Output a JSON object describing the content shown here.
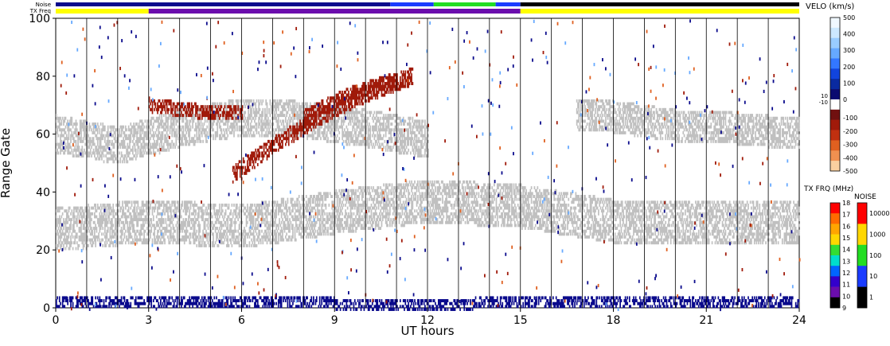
{
  "chart_data": {
    "type": "heatmap",
    "title": "",
    "xlabel": "UT hours",
    "ylabel": "Range Gate",
    "xlim": [
      0,
      24
    ],
    "ylim": [
      0,
      100
    ],
    "x_ticks": [
      "0",
      "3",
      "6",
      "9",
      "12",
      "15",
      "18",
      "21",
      "24"
    ],
    "y_ticks": [
      "0",
      "20",
      "40",
      "60",
      "80",
      "100"
    ],
    "grid_x_hourly": true,
    "status_bars": {
      "noise_label": "Noise",
      "txfreq_label": "TX Freq",
      "txfreq_segments": [
        {
          "start": 0,
          "end": 3,
          "color": "#ffff00"
        },
        {
          "start": 3,
          "end": 15,
          "color": "#6a0dad"
        },
        {
          "start": 15,
          "end": 24,
          "color": "#ffff00"
        }
      ],
      "noise_segments": [
        {
          "start": 0,
          "end": 10.8,
          "color": "#0a0a8c"
        },
        {
          "start": 10.8,
          "end": 12.2,
          "color": "#1a3cff"
        },
        {
          "start": 12.2,
          "end": 14.2,
          "color": "#22dd22"
        },
        {
          "start": 14.2,
          "end": 15.0,
          "color": "#1a3cff"
        },
        {
          "start": 15.0,
          "end": 24,
          "color": "#000000"
        }
      ]
    },
    "series": [
      {
        "name": "",
        "color": "#c0c0c0",
        "type": "ground-scatter",
        "bands": [
          {
            "x": [
              0,
              3,
              6,
              9,
              12,
              15,
              18,
              21,
              24
            ],
            "y_center": [
              27,
              30,
              28,
              33,
              37,
              35,
              30,
              29,
              30
            ],
            "width": 14
          },
          {
            "x": [
              0,
              2,
              4,
              6,
              8,
              10,
              12
            ],
            "y_center": [
              60,
              56,
              62,
              66,
              65,
              62,
              58
            ],
            "width": 12
          },
          {
            "x": [
              16.8,
              18,
              20,
              22,
              24
            ],
            "y_center": [
              67,
              66,
              63,
              62,
              60
            ],
            "width": 10
          }
        ]
      },
      {
        "name": "",
        "color": "#a01a0a",
        "type": "negative-velocity",
        "bands": [
          {
            "x": [
              5.7,
              7,
              8.5,
              10,
              11.5
            ],
            "y_center": [
              46,
              56,
              66,
              74,
              80
            ],
            "width": 5
          },
          {
            "x": [
              8,
              9.5,
              11
            ],
            "y_center": [
              66,
              74,
              79
            ],
            "width": 4
          },
          {
            "x": [
              3,
              4.5,
              6
            ],
            "y_center": [
              70,
              68,
              67
            ],
            "width": 4
          }
        ]
      },
      {
        "name": "",
        "color": "#0a0a8c",
        "type": "positive-velocity",
        "bands": [
          {
            "x": [
              0,
              6,
              12,
              15,
              24
            ],
            "y_center": [
              2,
              2,
              1,
              2,
              2
            ],
            "width": 3
          }
        ]
      }
    ],
    "velocity_colorbar": {
      "title": "VELO (km/s)",
      "ticks": [
        "500",
        "400",
        "300",
        "200",
        "100",
        "0",
        "-100",
        "-200",
        "-300",
        "-400",
        "-500"
      ],
      "zero_ticks": [
        "10",
        "-10"
      ],
      "colors": [
        "#f0f8ff",
        "#cce8ff",
        "#99ccff",
        "#66a9ff",
        "#3377ff",
        "#1144dd",
        "#0a2aa0",
        "#0a0a70",
        "#ffffff",
        "#701010",
        "#a01a0a",
        "#c03010",
        "#e06020",
        "#f09050",
        "#fad0a0"
      ]
    },
    "txfreq_colorbar": {
      "title": "TX FRQ (MHz)",
      "ticks": [
        "18",
        "17",
        "16",
        "15",
        "14",
        "13",
        "12",
        "11",
        "10",
        "9"
      ],
      "colors": [
        "#ff0000",
        "#ff6a00",
        "#ffa500",
        "#ffd700",
        "#33dd33",
        "#00ddcc",
        "#0066ff",
        "#3300cc",
        "#6a0dad",
        "#000000"
      ]
    },
    "noise_colorbar": {
      "title": "NOISE",
      "ticks": [
        "10000",
        "1000",
        "100",
        "10",
        "1"
      ],
      "colors": [
        "#ff0000",
        "#ffd700",
        "#22dd22",
        "#1a3cff",
        "#000000"
      ]
    }
  }
}
